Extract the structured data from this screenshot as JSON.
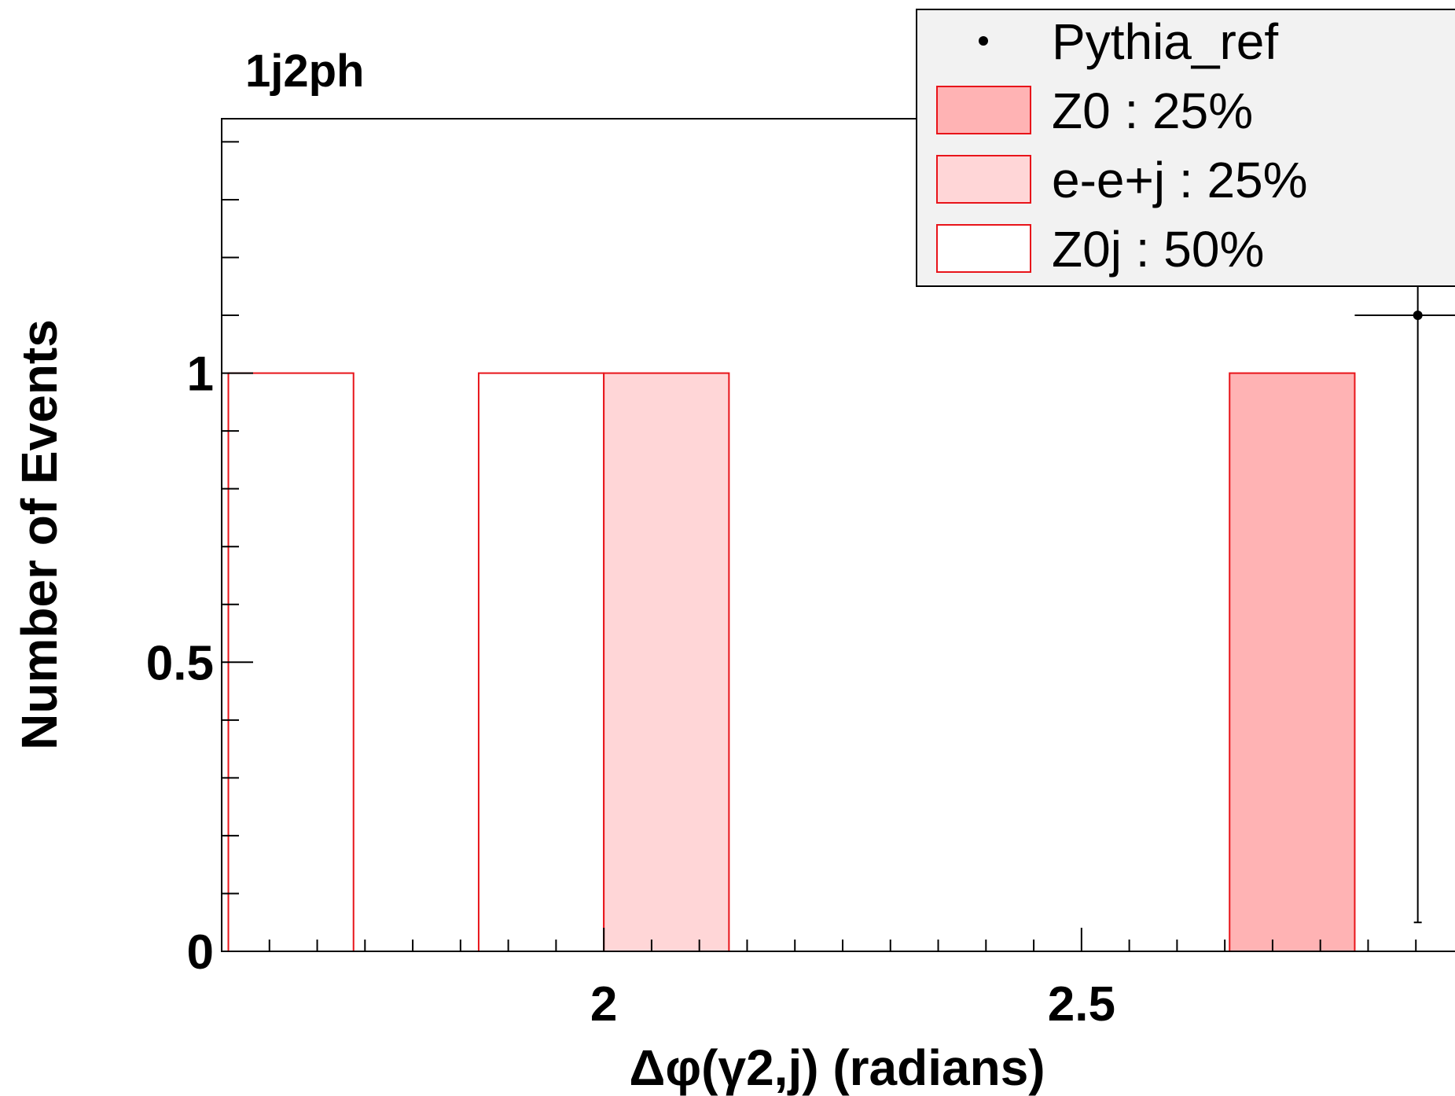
{
  "chart_data": {
    "type": "bar",
    "title": "1j2ph",
    "xlabel": "Δφ(γ2,j) (radians)",
    "ylabel": "Number of Events",
    "xlim": [
      1.6,
      2.9
    ],
    "ylim": [
      0,
      1.44
    ],
    "x_ticks": [
      {
        "value": 2.0,
        "label": "2"
      },
      {
        "value": 2.5,
        "label": "2.5"
      }
    ],
    "y_ticks": [
      {
        "value": 0,
        "label": "0"
      },
      {
        "value": 0.5,
        "label": "0.5"
      },
      {
        "value": 1,
        "label": "1"
      }
    ],
    "bin_width": 0.131,
    "series": [
      {
        "name": "Z0j : 50%",
        "fill": "#ffffff",
        "line": "#e8141a",
        "bins": [
          {
            "x0": 1.607,
            "x1": 1.738,
            "value": 1
          },
          {
            "x0": 1.869,
            "x1": 2.0,
            "value": 1
          }
        ]
      },
      {
        "name": "e-e+j : 25%",
        "fill": "#ffd6d7",
        "line": "#e8141a",
        "bins": [
          {
            "x0": 2.0,
            "x1": 2.131,
            "value": 1
          }
        ]
      },
      {
        "name": "Z0 : 25%",
        "fill": "#ffb3b4",
        "line": "#e8141a",
        "bins": [
          {
            "x0": 2.655,
            "x1": 2.786,
            "value": 1
          }
        ]
      }
    ],
    "points": {
      "name": "Pythia_ref",
      "color": "#000000",
      "data": [
        {
          "x": 2.852,
          "y": 1.1,
          "err_low": 1.05,
          "err_high": 0.34,
          "bin": [
            2.786,
            2.917
          ]
        }
      ]
    },
    "legend": {
      "position": "top-right",
      "entries": [
        {
          "label": "Pythia_ref",
          "marker": "point",
          "fill": "#000000",
          "line": "#000000"
        },
        {
          "label": "Z0 : 25%",
          "marker": "box",
          "fill": "#ffb3b4",
          "line": "#e8141a"
        },
        {
          "label": "e-e+j : 25%",
          "marker": "box",
          "fill": "#ffd6d7",
          "line": "#e8141a"
        },
        {
          "label": "Z0j : 50%",
          "marker": "box",
          "fill": "#ffffff",
          "line": "#e8141a"
        }
      ]
    },
    "grid": false
  }
}
